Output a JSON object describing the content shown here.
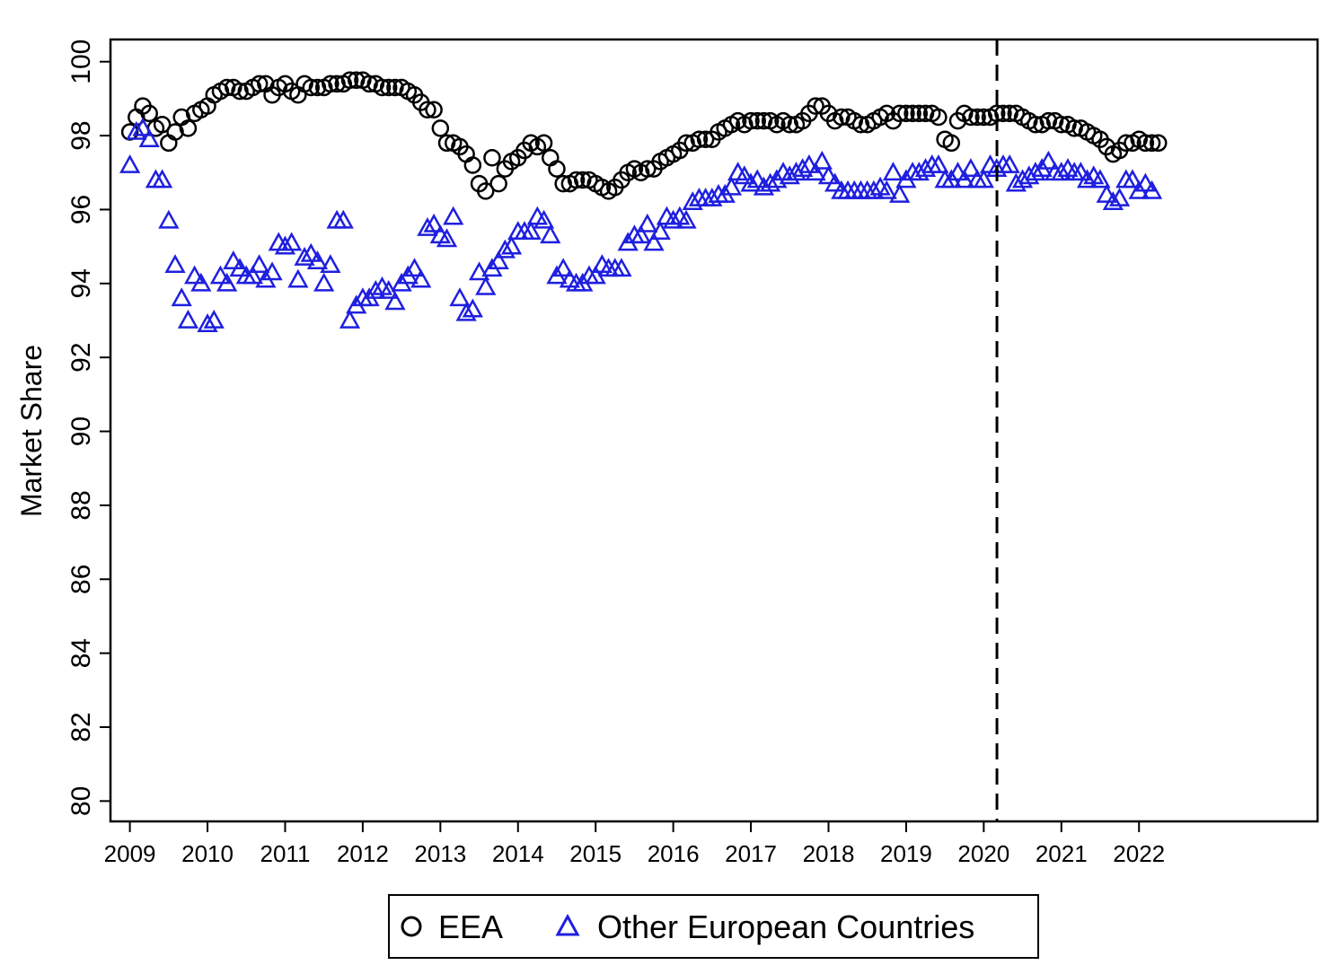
{
  "chart_data": {
    "type": "scatter",
    "title": "",
    "xlabel": "",
    "ylabel": "Market Share",
    "xlim": [
      2008.75,
      2024.3
    ],
    "ylim": [
      79.45,
      100.6
    ],
    "x_ticks": [
      2009,
      2010,
      2011,
      2012,
      2013,
      2014,
      2015,
      2016,
      2017,
      2018,
      2019,
      2020,
      2021,
      2022
    ],
    "x_tick_labels": [
      "2009",
      "2010",
      "2011",
      "2012",
      "2013",
      "2014",
      "2015",
      "2016",
      "2017",
      "2018",
      "2019",
      "2020",
      "2021",
      "2022"
    ],
    "y_ticks": [
      80,
      82,
      84,
      86,
      88,
      90,
      92,
      94,
      96,
      98,
      100
    ],
    "y_tick_labels": [
      "80",
      "82",
      "84",
      "86",
      "88",
      "90",
      "92",
      "94",
      "96",
      "98",
      "100"
    ],
    "grid": false,
    "legend_position": "bottom",
    "reference_line": {
      "x": 2020.17,
      "style": "dashed"
    },
    "series": [
      {
        "name": "EEA",
        "marker": "circle",
        "color": "#000000",
        "x_start": 2009.0,
        "x_step": 0.08333,
        "values": [
          98.1,
          98.5,
          98.8,
          98.6,
          98.2,
          98.3,
          97.8,
          98.1,
          98.5,
          98.2,
          98.6,
          98.7,
          98.8,
          99.1,
          99.2,
          99.3,
          99.3,
          99.2,
          99.2,
          99.3,
          99.4,
          99.4,
          99.1,
          99.3,
          99.4,
          99.2,
          99.1,
          99.4,
          99.3,
          99.3,
          99.3,
          99.4,
          99.4,
          99.4,
          99.5,
          99.5,
          99.5,
          99.4,
          99.4,
          99.3,
          99.3,
          99.3,
          99.3,
          99.2,
          99.1,
          98.9,
          98.7,
          98.7,
          98.2,
          97.8,
          97.8,
          97.7,
          97.5,
          97.2,
          96.7,
          96.5,
          97.4,
          96.7,
          97.1,
          97.3,
          97.4,
          97.6,
          97.8,
          97.7,
          97.8,
          97.4,
          97.1,
          96.7,
          96.7,
          96.8,
          96.8,
          96.8,
          96.7,
          96.6,
          96.5,
          96.6,
          96.8,
          97.0,
          97.1,
          97.0,
          97.1,
          97.1,
          97.3,
          97.4,
          97.5,
          97.6,
          97.8,
          97.8,
          97.9,
          97.9,
          97.9,
          98.1,
          98.2,
          98.3,
          98.4,
          98.3,
          98.4,
          98.4,
          98.4,
          98.4,
          98.3,
          98.4,
          98.3,
          98.3,
          98.4,
          98.6,
          98.8,
          98.8,
          98.6,
          98.4,
          98.5,
          98.5,
          98.4,
          98.3,
          98.3,
          98.4,
          98.5,
          98.6,
          98.4,
          98.6,
          98.6,
          98.6,
          98.6,
          98.6,
          98.6,
          98.5,
          97.9,
          97.8,
          98.4,
          98.6,
          98.5,
          98.5,
          98.5,
          98.5,
          98.6,
          98.6,
          98.6,
          98.6,
          98.5,
          98.4,
          98.3,
          98.3,
          98.4,
          98.4,
          98.3,
          98.3,
          98.2,
          98.2,
          98.1,
          98.0,
          97.9,
          97.7,
          97.5,
          97.6,
          97.8,
          97.8,
          97.9,
          97.8,
          97.8,
          97.8
        ]
      },
      {
        "name": "Other European Countries",
        "marker": "triangle",
        "color": "#1f1fe0",
        "x_start": 2009.0,
        "x_step": 0.08333,
        "values": [
          97.2,
          98.1,
          98.2,
          97.9,
          96.8,
          96.8,
          95.7,
          94.5,
          93.6,
          93.0,
          94.2,
          94.0,
          92.9,
          93.0,
          94.2,
          94.0,
          94.6,
          94.4,
          94.2,
          94.2,
          94.5,
          94.1,
          94.3,
          95.1,
          95.0,
          95.1,
          94.1,
          94.7,
          94.8,
          94.6,
          94.0,
          94.5,
          95.7,
          95.7,
          93.0,
          93.4,
          93.6,
          93.6,
          93.8,
          93.9,
          93.8,
          93.5,
          94.0,
          94.2,
          94.4,
          94.1,
          95.5,
          95.6,
          95.3,
          95.2,
          95.8,
          93.6,
          93.2,
          93.3,
          94.3,
          93.9,
          94.4,
          94.6,
          94.9,
          95.0,
          95.4,
          95.4,
          95.4,
          95.8,
          95.7,
          95.3,
          94.2,
          94.4,
          94.1,
          94.0,
          94.0,
          94.2,
          94.2,
          94.5,
          94.4,
          94.4,
          94.4,
          95.1,
          95.3,
          95.3,
          95.6,
          95.1,
          95.4,
          95.8,
          95.7,
          95.8,
          95.7,
          96.2,
          96.3,
          96.3,
          96.3,
          96.4,
          96.4,
          96.6,
          97.0,
          96.9,
          96.7,
          96.8,
          96.6,
          96.7,
          96.8,
          97.0,
          96.9,
          97.0,
          97.1,
          97.2,
          97.0,
          97.3,
          96.9,
          96.7,
          96.5,
          96.5,
          96.5,
          96.5,
          96.5,
          96.5,
          96.6,
          96.5,
          97.0,
          96.4,
          96.8,
          97.0,
          97.0,
          97.1,
          97.2,
          97.2,
          96.8,
          96.8,
          97.0,
          96.8,
          97.1,
          96.8,
          96.8,
          97.2,
          97.1,
          97.2,
          97.2,
          96.7,
          96.8,
          96.9,
          97.0,
          97.1,
          97.3,
          97.0,
          97.0,
          97.1,
          97.0,
          97.0,
          96.8,
          96.9,
          96.8,
          96.4,
          96.2,
          96.3,
          96.8,
          96.8,
          96.5,
          96.7,
          96.5
        ]
      }
    ]
  }
}
